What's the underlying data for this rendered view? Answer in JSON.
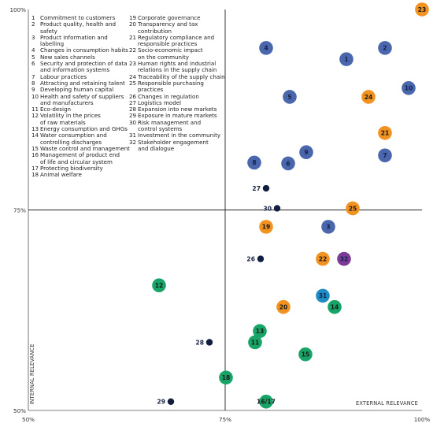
{
  "legend": {
    "column1": [
      {
        "n": "1",
        "text": "Commitment to customers"
      },
      {
        "n": "2",
        "text": "Product quality, health and safety"
      },
      {
        "n": "3",
        "text": "Product information and labelling"
      },
      {
        "n": "4",
        "text": "Changes in consumption habits"
      },
      {
        "n": "5",
        "text": "New sales channels"
      },
      {
        "n": "6",
        "text": "Security and protection of data\nand information systems"
      },
      {
        "n": "7",
        "text": "Labour practices"
      },
      {
        "n": "8",
        "text": "Attracting and retaining talent"
      },
      {
        "n": "9",
        "text": "Developing human capital"
      },
      {
        "n": "10",
        "text": "Health and safety of suppliers\nand manufacturers"
      },
      {
        "n": "11",
        "text": "Eco-design"
      },
      {
        "n": "12",
        "text": "Volatility in the prices\nof raw materials"
      },
      {
        "n": "13",
        "text": "Energy consumption and GHGs"
      },
      {
        "n": "14",
        "text": "Water consumption and\ncontrolling discharges"
      },
      {
        "n": "15",
        "text": "Waste control and management"
      },
      {
        "n": "16",
        "text": "Management of product end\nof life and circular system"
      },
      {
        "n": "17",
        "text": "Protecting biodiversity"
      },
      {
        "n": "18",
        "text": "Animal welfare"
      }
    ],
    "column2": [
      {
        "n": "19",
        "text": "Corporate governance"
      },
      {
        "n": "20",
        "text": "Transparency and tax contribution"
      },
      {
        "n": "21",
        "text": "Regulatory compliance and\nresponsible practices"
      },
      {
        "n": "22",
        "text": "Socio-economic impact\non the community"
      },
      {
        "n": "23",
        "text": "Human rights and industrial\nrelations in the supply chain"
      },
      {
        "n": "24",
        "text": "Traceability of the supply chain"
      },
      {
        "n": "25",
        "text": "Responsible purchasing practices"
      },
      {
        "n": "26",
        "text": "Changes in regulation"
      },
      {
        "n": "27",
        "text": "Logistics model"
      },
      {
        "n": "28",
        "text": "Expansion into new markets"
      },
      {
        "n": "29",
        "text": "Exposure in mature markets"
      },
      {
        "n": "30",
        "text": "Risk management and\ncontrol systems"
      },
      {
        "n": "31",
        "text": "Investment in the community"
      },
      {
        "n": "32",
        "text": "Stakeholder engagement\nand dialogue"
      }
    ]
  },
  "colors": {
    "blue": "#4a66ad",
    "orange": "#f29220",
    "green": "#17a567",
    "purple": "#7b3b97",
    "navy": "#121d40",
    "teal": "#1f8dc3",
    "axis": "#555555",
    "divider": "#222222"
  },
  "chart_data": {
    "type": "scatter",
    "title": "",
    "xlabel": "EXTERNAL RELEVANCE",
    "ylabel": "INTERNAL RELEVANCE",
    "xlim": [
      50,
      100
    ],
    "ylim": [
      50,
      100
    ],
    "x_ticks": [
      "50%",
      "75%",
      "100%"
    ],
    "y_ticks": [
      "50%",
      "75%",
      "100%"
    ],
    "divider_x": 75,
    "divider_y": 75,
    "grid": false,
    "points": [
      {
        "label": "1",
        "x": 90.4,
        "y": 93.8,
        "color": "blue",
        "style": "bubble"
      },
      {
        "label": "2",
        "x": 95.3,
        "y": 95.2,
        "color": "blue",
        "style": "bubble"
      },
      {
        "label": "3",
        "x": 88.1,
        "y": 72.9,
        "color": "blue",
        "style": "bubble"
      },
      {
        "label": "4",
        "x": 80.2,
        "y": 95.2,
        "color": "blue",
        "style": "bubble"
      },
      {
        "label": "5",
        "x": 83.2,
        "y": 89.1,
        "color": "blue",
        "style": "bubble"
      },
      {
        "label": "6",
        "x": 83.0,
        "y": 80.8,
        "color": "blue",
        "style": "bubble"
      },
      {
        "label": "7",
        "x": 95.3,
        "y": 81.8,
        "color": "blue",
        "style": "bubble"
      },
      {
        "label": "8",
        "x": 78.7,
        "y": 80.9,
        "color": "blue",
        "style": "bubble"
      },
      {
        "label": "9",
        "x": 85.3,
        "y": 82.2,
        "color": "blue",
        "style": "bubble"
      },
      {
        "label": "10",
        "x": 98.3,
        "y": 90.2,
        "color": "blue",
        "style": "bubble"
      },
      {
        "label": "11",
        "x": 78.8,
        "y": 58.5,
        "color": "green",
        "style": "bubble"
      },
      {
        "label": "12",
        "x": 66.6,
        "y": 65.6,
        "color": "green",
        "style": "bubble"
      },
      {
        "label": "13",
        "x": 79.4,
        "y": 59.9,
        "color": "green",
        "style": "bubble"
      },
      {
        "label": "14",
        "x": 88.9,
        "y": 62.9,
        "color": "green",
        "style": "bubble"
      },
      {
        "label": "15",
        "x": 85.2,
        "y": 57.0,
        "color": "green",
        "style": "bubble"
      },
      {
        "label": "16/17",
        "x": 80.2,
        "y": 51.1,
        "color": "green",
        "style": "bubble"
      },
      {
        "label": "18",
        "x": 75.1,
        "y": 54.1,
        "color": "green",
        "style": "bubble"
      },
      {
        "label": "19",
        "x": 80.2,
        "y": 72.9,
        "color": "orange",
        "style": "bubble"
      },
      {
        "label": "20",
        "x": 82.4,
        "y": 62.9,
        "color": "orange",
        "style": "bubble"
      },
      {
        "label": "21",
        "x": 95.3,
        "y": 84.6,
        "color": "orange",
        "style": "bubble"
      },
      {
        "label": "22",
        "x": 87.4,
        "y": 68.9,
        "color": "orange",
        "style": "bubble"
      },
      {
        "label": "23",
        "x": 100.0,
        "y": 100.0,
        "color": "orange",
        "style": "bubble"
      },
      {
        "label": "24",
        "x": 93.2,
        "y": 89.1,
        "color": "orange",
        "style": "bubble"
      },
      {
        "label": "25",
        "x": 91.2,
        "y": 75.2,
        "color": "orange",
        "style": "bubble"
      },
      {
        "label": "26",
        "x": 79.5,
        "y": 68.9,
        "color": "navy",
        "style": "dot"
      },
      {
        "label": "27",
        "x": 80.2,
        "y": 77.7,
        "color": "navy",
        "style": "dot"
      },
      {
        "label": "28",
        "x": 73.0,
        "y": 58.5,
        "color": "navy",
        "style": "dot"
      },
      {
        "label": "29",
        "x": 68.1,
        "y": 51.1,
        "color": "navy",
        "style": "dot"
      },
      {
        "label": "30",
        "x": 81.6,
        "y": 75.2,
        "color": "navy",
        "style": "dot"
      },
      {
        "label": "31",
        "x": 87.4,
        "y": 64.3,
        "color": "teal",
        "style": "bubble"
      },
      {
        "label": "32",
        "x": 90.1,
        "y": 68.9,
        "color": "purple",
        "style": "bubble"
      }
    ]
  }
}
